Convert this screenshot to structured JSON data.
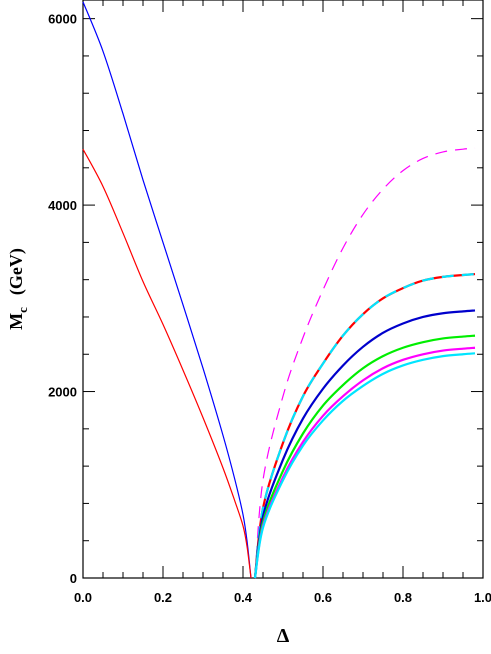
{
  "chart_data": {
    "type": "line",
    "title": "",
    "xlabel": "Δ",
    "ylabel": "M_c  (GeV)",
    "ylabel_main": "M",
    "ylabel_sub": "c",
    "ylabel_unit": "(GeV)",
    "xlim": [
      0.0,
      1.0
    ],
    "ylim": [
      0,
      6200
    ],
    "grid": false,
    "legend": "none",
    "xticks": [
      0.0,
      0.2,
      0.4,
      0.6,
      0.8,
      1.0
    ],
    "xtick_labels": [
      "0.0",
      "0.2",
      "0.4",
      "0.6",
      "0.8",
      "1.0"
    ],
    "yticks": [
      0,
      2000,
      4000,
      6000
    ],
    "ytick_labels": [
      "0",
      "2000",
      "4000",
      "6000"
    ],
    "series": [
      {
        "color": "#0000ff",
        "style": "solid",
        "width": 1.2,
        "x": [
          0.0,
          0.05,
          0.1,
          0.15,
          0.2,
          0.25,
          0.3,
          0.35,
          0.38,
          0.4,
          0.41,
          0.42
        ],
        "y": [
          6180,
          5650,
          4980,
          4270,
          3600,
          2930,
          2250,
          1530,
          1050,
          680,
          400,
          0
        ]
      },
      {
        "color": "#ff0000",
        "style": "solid",
        "width": 1.2,
        "x": [
          0.0,
          0.05,
          0.1,
          0.15,
          0.2,
          0.25,
          0.3,
          0.35,
          0.38,
          0.4,
          0.41,
          0.42
        ],
        "y": [
          4600,
          4200,
          3700,
          3180,
          2720,
          2230,
          1720,
          1180,
          820,
          560,
          340,
          0
        ]
      },
      {
        "color": "#ff00ff",
        "style": "dashed",
        "width": 1.2,
        "x": [
          0.43,
          0.45,
          0.5,
          0.55,
          0.6,
          0.65,
          0.7,
          0.75,
          0.8,
          0.85,
          0.9,
          0.95,
          0.98
        ],
        "y": [
          0,
          1050,
          1950,
          2580,
          3090,
          3540,
          3900,
          4170,
          4370,
          4500,
          4570,
          4600,
          4610
        ]
      },
      {
        "color": "#ff0000",
        "style": "solid",
        "width": 2.2,
        "x": [
          0.43,
          0.45,
          0.5,
          0.55,
          0.6,
          0.65,
          0.7,
          0.75,
          0.8,
          0.85,
          0.9,
          0.95,
          0.98
        ],
        "y": [
          0,
          750,
          1450,
          1950,
          2300,
          2600,
          2830,
          3000,
          3110,
          3190,
          3230,
          3250,
          3260
        ]
      },
      {
        "color": "#00e5ff",
        "style": "dashed",
        "width": 2.2,
        "x": [
          0.43,
          0.45,
          0.5,
          0.55,
          0.6,
          0.65,
          0.7,
          0.75,
          0.8,
          0.85,
          0.9,
          0.95,
          0.98
        ],
        "y": [
          0,
          750,
          1450,
          1950,
          2300,
          2600,
          2830,
          3000,
          3110,
          3190,
          3230,
          3250,
          3260
        ]
      },
      {
        "color": "#0000cc",
        "style": "solid",
        "width": 2.2,
        "x": [
          0.43,
          0.45,
          0.5,
          0.55,
          0.6,
          0.65,
          0.7,
          0.75,
          0.8,
          0.85,
          0.9,
          0.95,
          0.98
        ],
        "y": [
          0,
          660,
          1270,
          1710,
          2030,
          2280,
          2480,
          2630,
          2730,
          2800,
          2840,
          2860,
          2870
        ]
      },
      {
        "color": "#00ee00",
        "style": "solid",
        "width": 2.2,
        "x": [
          0.43,
          0.45,
          0.5,
          0.55,
          0.6,
          0.65,
          0.7,
          0.75,
          0.8,
          0.85,
          0.9,
          0.95,
          0.98
        ],
        "y": [
          0,
          600,
          1150,
          1550,
          1850,
          2070,
          2250,
          2380,
          2470,
          2530,
          2570,
          2590,
          2600
        ]
      },
      {
        "color": "#ff00ff",
        "style": "solid",
        "width": 2.2,
        "x": [
          0.43,
          0.45,
          0.5,
          0.55,
          0.6,
          0.65,
          0.7,
          0.75,
          0.8,
          0.85,
          0.9,
          0.95,
          0.98
        ],
        "y": [
          0,
          560,
          1080,
          1460,
          1740,
          1950,
          2120,
          2250,
          2340,
          2400,
          2440,
          2460,
          2470
        ]
      },
      {
        "color": "#00e5ff",
        "style": "solid",
        "width": 2.2,
        "x": [
          0.43,
          0.45,
          0.5,
          0.55,
          0.6,
          0.65,
          0.7,
          0.75,
          0.8,
          0.85,
          0.9,
          0.95,
          0.98
        ],
        "y": [
          0,
          540,
          1050,
          1420,
          1690,
          1900,
          2060,
          2190,
          2280,
          2340,
          2380,
          2400,
          2410
        ]
      }
    ]
  }
}
